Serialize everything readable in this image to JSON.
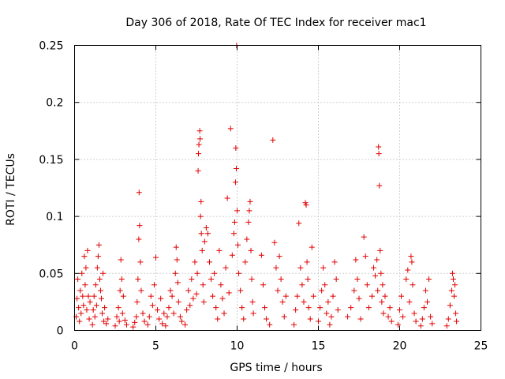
{
  "chart_data": {
    "type": "scatter",
    "title": "Day 306 of 2018, Rate Of TEC Index for receiver mac1",
    "xlabel": "GPS time / hours",
    "ylabel": "ROTI / TECUs",
    "xlim": [
      0,
      25
    ],
    "ylim": [
      0,
      0.25
    ],
    "x_ticks": [
      "0",
      "5",
      "10",
      "15",
      "20",
      "25"
    ],
    "y_ticks": [
      "0",
      "0.05",
      "0.1",
      "0.15",
      "0.2",
      "0.25"
    ],
    "grid": true,
    "marker": "+",
    "color": "#e00000",
    "series": [
      {
        "name": "ROTI",
        "points": [
          [
            0.1,
            0.012
          ],
          [
            0.15,
            0.028
          ],
          [
            0.2,
            0.045
          ],
          [
            0.25,
            0.02
          ],
          [
            0.3,
            0.008
          ],
          [
            0.35,
            0.035
          ],
          [
            0.4,
            0.015
          ],
          [
            0.45,
            0.05
          ],
          [
            0.5,
            0.03
          ],
          [
            0.55,
            0.022
          ],
          [
            0.6,
            0.065
          ],
          [
            0.65,
            0.04
          ],
          [
            0.7,
            0.055
          ],
          [
            0.75,
            0.018
          ],
          [
            0.8,
            0.07
          ],
          [
            0.85,
            0.03
          ],
          [
            0.9,
            0.01
          ],
          [
            0.95,
            0.025
          ],
          [
            1.1,
            0.005
          ],
          [
            1.15,
            0.018
          ],
          [
            1.2,
            0.03
          ],
          [
            1.25,
            0.012
          ],
          [
            1.3,
            0.04
          ],
          [
            1.35,
            0.022
          ],
          [
            1.4,
            0.055
          ],
          [
            1.45,
            0.065
          ],
          [
            1.5,
            0.075
          ],
          [
            1.55,
            0.045
          ],
          [
            1.6,
            0.035
          ],
          [
            1.65,
            0.028
          ],
          [
            1.7,
            0.015
          ],
          [
            1.75,
            0.05
          ],
          [
            1.8,
            0.008
          ],
          [
            1.85,
            0.02
          ],
          [
            1.95,
            0.006
          ],
          [
            2.05,
            0.01
          ],
          [
            2.5,
            0.004
          ],
          [
            2.6,
            0.012
          ],
          [
            2.7,
            0.02
          ],
          [
            2.75,
            0.008
          ],
          [
            2.8,
            0.035
          ],
          [
            2.85,
            0.062
          ],
          [
            2.9,
            0.045
          ],
          [
            2.95,
            0.015
          ],
          [
            3.0,
            0.03
          ],
          [
            3.1,
            0.009
          ],
          [
            3.2,
            0.005
          ],
          [
            3.6,
            0.003
          ],
          [
            3.7,
            0.007
          ],
          [
            3.8,
            0.012
          ],
          [
            3.85,
            0.025
          ],
          [
            3.9,
            0.045
          ],
          [
            3.95,
            0.08
          ],
          [
            3.97,
            0.121
          ],
          [
            4.0,
            0.092
          ],
          [
            4.05,
            0.06
          ],
          [
            4.1,
            0.035
          ],
          [
            4.2,
            0.015
          ],
          [
            4.3,
            0.008
          ],
          [
            4.5,
            0.005
          ],
          [
            4.6,
            0.012
          ],
          [
            4.7,
            0.03
          ],
          [
            4.8,
            0.022
          ],
          [
            4.9,
            0.04
          ],
          [
            5.0,
            0.064
          ],
          [
            5.1,
            0.018
          ],
          [
            5.2,
            0.01
          ],
          [
            5.3,
            0.028
          ],
          [
            5.4,
            0.006
          ],
          [
            5.5,
            0.015
          ],
          [
            5.6,
            0.004
          ],
          [
            5.7,
            0.012
          ],
          [
            5.8,
            0.02
          ],
          [
            5.9,
            0.035
          ],
          [
            6.0,
            0.03
          ],
          [
            6.1,
            0.015
          ],
          [
            6.2,
            0.05
          ],
          [
            6.25,
            0.073
          ],
          [
            6.3,
            0.062
          ],
          [
            6.35,
            0.042
          ],
          [
            6.4,
            0.025
          ],
          [
            6.5,
            0.012
          ],
          [
            6.6,
            0.008
          ],
          [
            6.8,
            0.005
          ],
          [
            6.9,
            0.018
          ],
          [
            7.0,
            0.035
          ],
          [
            7.1,
            0.022
          ],
          [
            7.2,
            0.045
          ],
          [
            7.3,
            0.028
          ],
          [
            7.4,
            0.06
          ],
          [
            7.5,
            0.032
          ],
          [
            7.55,
            0.05
          ],
          [
            7.6,
            0.14
          ],
          [
            7.62,
            0.155
          ],
          [
            7.65,
            0.163
          ],
          [
            7.7,
            0.175
          ],
          [
            7.72,
            0.168
          ],
          [
            7.75,
            0.1
          ],
          [
            7.78,
            0.113
          ],
          [
            7.8,
            0.085
          ],
          [
            7.85,
            0.07
          ],
          [
            7.9,
            0.04
          ],
          [
            7.95,
            0.025
          ],
          [
            8.0,
            0.078
          ],
          [
            8.1,
            0.09
          ],
          [
            8.2,
            0.085
          ],
          [
            8.3,
            0.06
          ],
          [
            8.4,
            0.045
          ],
          [
            8.5,
            0.03
          ],
          [
            8.6,
            0.05
          ],
          [
            8.7,
            0.02
          ],
          [
            8.8,
            0.01
          ],
          [
            8.9,
            0.07
          ],
          [
            9.0,
            0.04
          ],
          [
            9.1,
            0.028
          ],
          [
            9.2,
            0.015
          ],
          [
            9.3,
            0.055
          ],
          [
            9.4,
            0.116
          ],
          [
            9.5,
            0.033
          ],
          [
            9.6,
            0.177
          ],
          [
            9.7,
            0.066
          ],
          [
            9.8,
            0.085
          ],
          [
            9.85,
            0.095
          ],
          [
            9.9,
            0.13
          ],
          [
            9.92,
            0.16
          ],
          [
            9.95,
            0.142
          ],
          [
            9.97,
            0.25
          ],
          [
            10.0,
            0.105
          ],
          [
            10.05,
            0.075
          ],
          [
            10.1,
            0.05
          ],
          [
            10.2,
            0.035
          ],
          [
            10.3,
            0.02
          ],
          [
            10.4,
            0.01
          ],
          [
            10.5,
            0.06
          ],
          [
            10.6,
            0.08
          ],
          [
            10.7,
            0.095
          ],
          [
            10.75,
            0.105
          ],
          [
            10.8,
            0.113
          ],
          [
            10.85,
            0.07
          ],
          [
            10.9,
            0.045
          ],
          [
            10.95,
            0.025
          ],
          [
            11.0,
            0.015
          ],
          [
            11.5,
            0.066
          ],
          [
            11.6,
            0.04
          ],
          [
            11.7,
            0.02
          ],
          [
            11.8,
            0.01
          ],
          [
            12.0,
            0.005
          ],
          [
            12.2,
            0.167
          ],
          [
            12.3,
            0.077
          ],
          [
            12.4,
            0.055
          ],
          [
            12.5,
            0.035
          ],
          [
            12.6,
            0.065
          ],
          [
            12.7,
            0.045
          ],
          [
            12.8,
            0.025
          ],
          [
            12.9,
            0.012
          ],
          [
            13.0,
            0.03
          ],
          [
            13.5,
            0.005
          ],
          [
            13.6,
            0.018
          ],
          [
            13.7,
            0.03
          ],
          [
            13.8,
            0.094
          ],
          [
            13.9,
            0.055
          ],
          [
            14.0,
            0.04
          ],
          [
            14.1,
            0.025
          ],
          [
            14.2,
            0.112
          ],
          [
            14.25,
            0.11
          ],
          [
            14.3,
            0.06
          ],
          [
            14.35,
            0.045
          ],
          [
            14.4,
            0.02
          ],
          [
            14.5,
            0.01
          ],
          [
            14.6,
            0.073
          ],
          [
            14.7,
            0.03
          ],
          [
            15.0,
            0.008
          ],
          [
            15.1,
            0.02
          ],
          [
            15.2,
            0.035
          ],
          [
            15.3,
            0.055
          ],
          [
            15.4,
            0.04
          ],
          [
            15.5,
            0.015
          ],
          [
            15.6,
            0.025
          ],
          [
            15.7,
            0.005
          ],
          [
            15.8,
            0.012
          ],
          [
            15.9,
            0.03
          ],
          [
            16.0,
            0.06
          ],
          [
            16.1,
            0.045
          ],
          [
            16.2,
            0.018
          ],
          [
            16.8,
            0.012
          ],
          [
            17.0,
            0.02
          ],
          [
            17.2,
            0.035
          ],
          [
            17.3,
            0.062
          ],
          [
            17.4,
            0.045
          ],
          [
            17.5,
            0.028
          ],
          [
            17.6,
            0.01
          ],
          [
            17.8,
            0.082
          ],
          [
            17.9,
            0.065
          ],
          [
            18.0,
            0.04
          ],
          [
            18.1,
            0.02
          ],
          [
            18.3,
            0.03
          ],
          [
            18.4,
            0.055
          ],
          [
            18.5,
            0.048
          ],
          [
            18.6,
            0.062
          ],
          [
            18.65,
            0.035
          ],
          [
            18.7,
            0.161
          ],
          [
            18.72,
            0.155
          ],
          [
            18.75,
            0.127
          ],
          [
            18.8,
            0.07
          ],
          [
            18.85,
            0.05
          ],
          [
            18.9,
            0.025
          ],
          [
            18.95,
            0.04
          ],
          [
            19.0,
            0.015
          ],
          [
            19.1,
            0.03
          ],
          [
            19.3,
            0.012
          ],
          [
            19.4,
            0.02
          ],
          [
            19.5,
            0.008
          ],
          [
            19.9,
            0.005
          ],
          [
            20.0,
            0.018
          ],
          [
            20.1,
            0.03
          ],
          [
            20.2,
            0.012
          ],
          [
            20.4,
            0.045
          ],
          [
            20.5,
            0.053
          ],
          [
            20.6,
            0.025
          ],
          [
            20.7,
            0.065
          ],
          [
            20.75,
            0.06
          ],
          [
            20.8,
            0.04
          ],
          [
            20.9,
            0.015
          ],
          [
            21.0,
            0.008
          ],
          [
            21.3,
            0.004
          ],
          [
            21.4,
            0.01
          ],
          [
            21.5,
            0.02
          ],
          [
            21.6,
            0.035
          ],
          [
            21.7,
            0.025
          ],
          [
            21.8,
            0.045
          ],
          [
            21.9,
            0.012
          ],
          [
            22.0,
            0.006
          ],
          [
            22.9,
            0.004
          ],
          [
            23.0,
            0.01
          ],
          [
            23.1,
            0.022
          ],
          [
            23.2,
            0.035
          ],
          [
            23.25,
            0.05
          ],
          [
            23.3,
            0.045
          ],
          [
            23.35,
            0.03
          ],
          [
            23.4,
            0.04
          ],
          [
            23.45,
            0.015
          ],
          [
            23.5,
            0.008
          ]
        ]
      }
    ]
  }
}
